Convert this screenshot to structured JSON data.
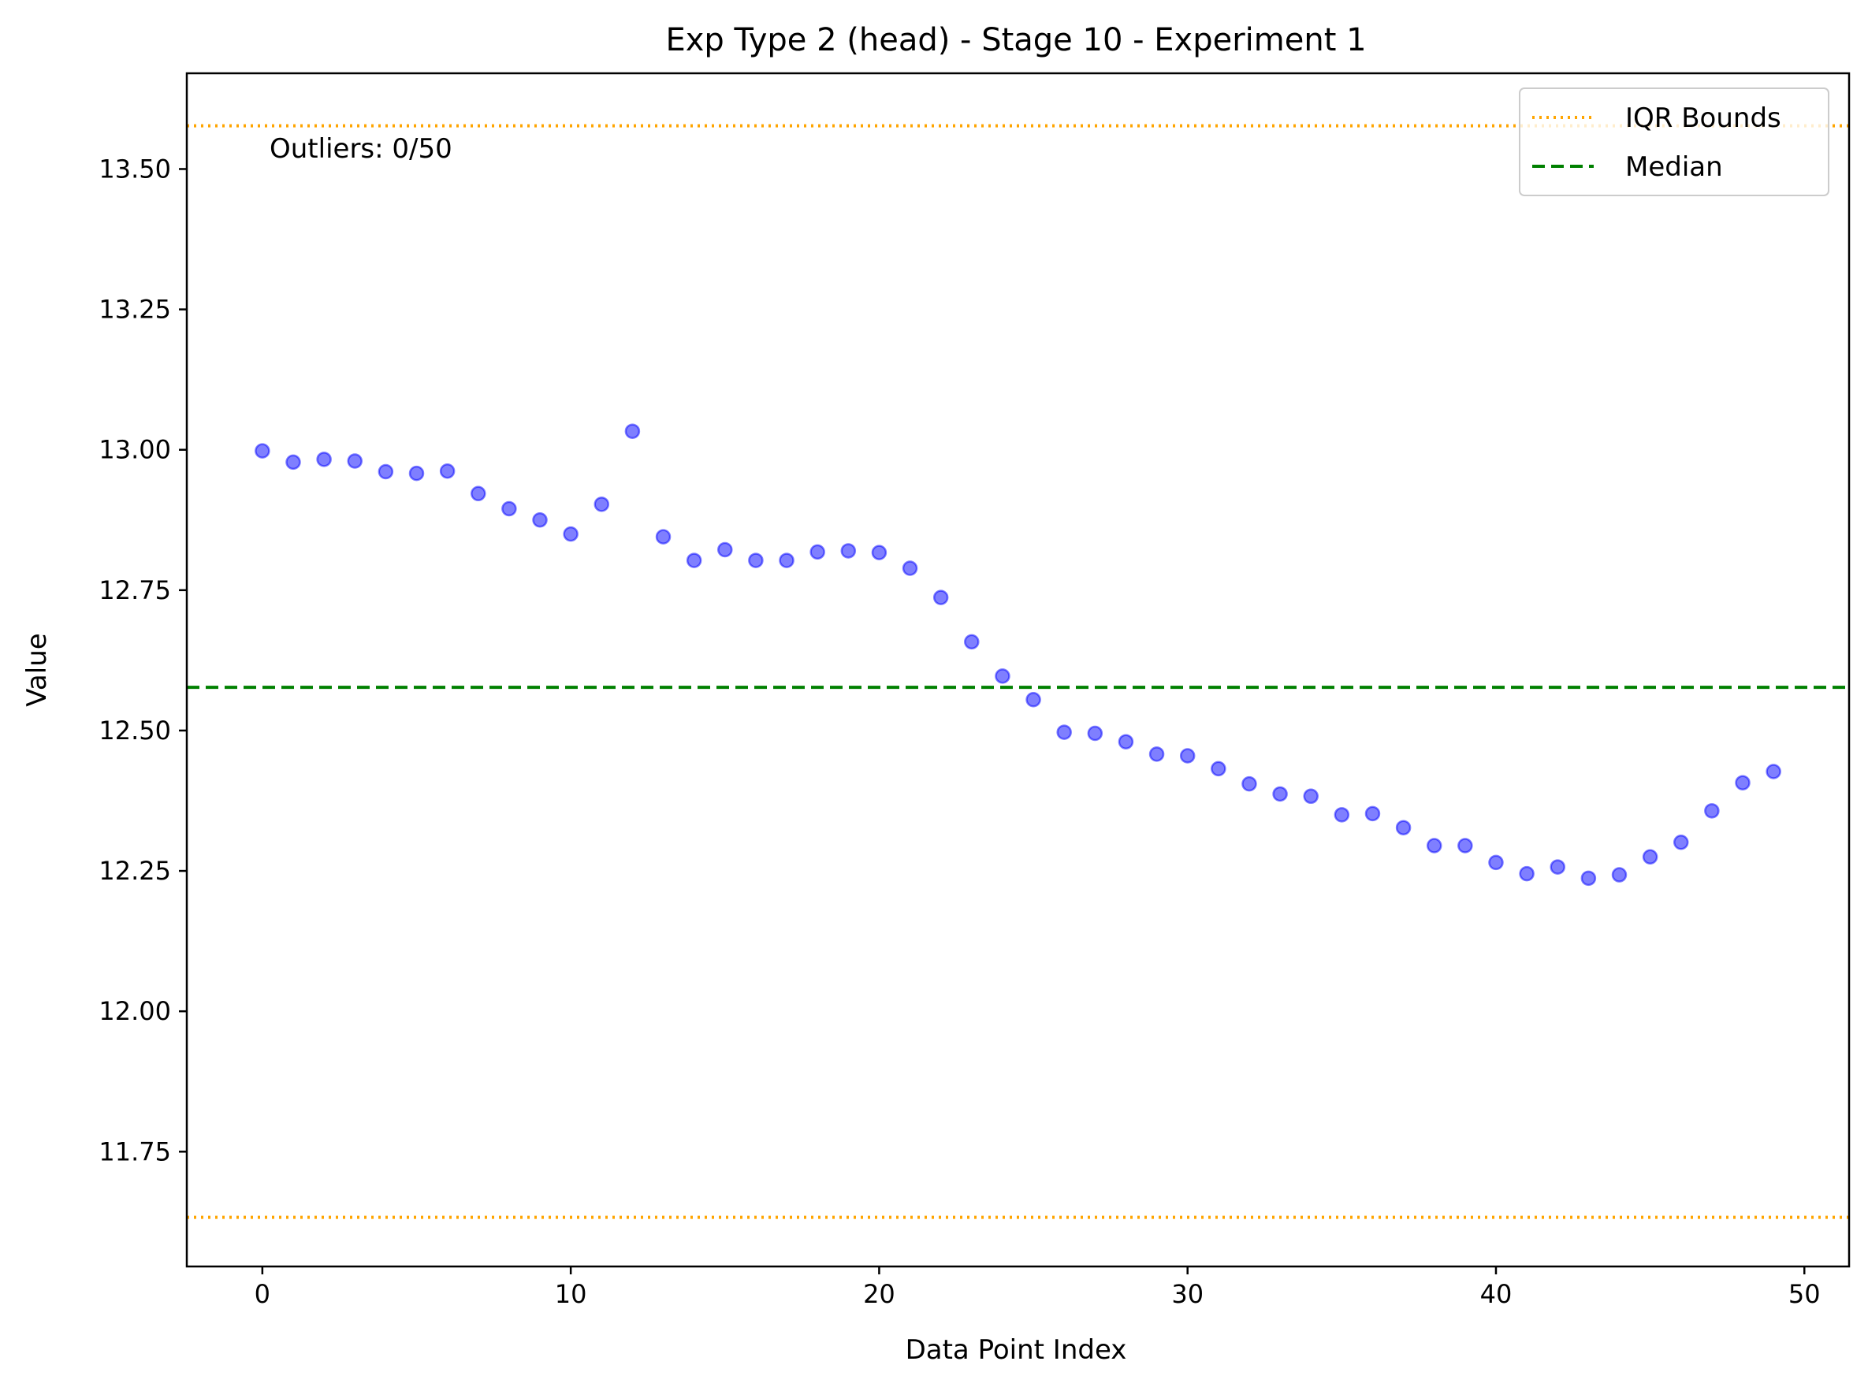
{
  "chart_data": {
    "type": "scatter",
    "title": "Exp Type 2 (head) - Stage 10 - Experiment 1",
    "xlabel": "Data Point Index",
    "ylabel": "Value",
    "xlim": [
      -2.45,
      51.45
    ],
    "ylim": [
      11.5455,
      13.6705
    ],
    "xticks": [
      0,
      10,
      20,
      30,
      40,
      50
    ],
    "xtick_labels": [
      "0",
      "10",
      "20",
      "30",
      "40",
      "50"
    ],
    "yticks": [
      11.75,
      12.0,
      12.25,
      12.5,
      12.75,
      13.0,
      13.25,
      13.5
    ],
    "ytick_labels": [
      "11.75",
      "12.00",
      "12.25",
      "12.50",
      "12.75",
      "13.00",
      "13.25",
      "13.50"
    ],
    "grid": false,
    "legend_position": "upper right",
    "annotation": "Outliers: 0/50",
    "colors": {
      "points": "#0000ff",
      "iqr": "#ffa500",
      "median": "#008000"
    },
    "series": [
      {
        "name": "",
        "x": [
          0,
          1,
          2,
          3,
          4,
          5,
          6,
          7,
          8,
          9,
          10,
          11,
          12,
          13,
          14,
          15,
          16,
          17,
          18,
          19,
          20,
          21,
          22,
          23,
          24,
          25,
          26,
          27,
          28,
          29,
          30,
          31,
          32,
          33,
          34,
          35,
          36,
          37,
          38,
          39,
          40,
          41,
          42,
          43,
          44,
          45,
          46,
          47,
          48,
          49
        ],
        "y": [
          12.998,
          12.978,
          12.983,
          12.98,
          12.961,
          12.958,
          12.962,
          12.922,
          12.895,
          12.875,
          12.85,
          12.903,
          13.033,
          12.845,
          12.803,
          12.822,
          12.803,
          12.803,
          12.818,
          12.82,
          12.817,
          12.789,
          12.737,
          12.658,
          12.597,
          12.555,
          12.497,
          12.495,
          12.48,
          12.458,
          12.455,
          12.432,
          12.405,
          12.387,
          12.383,
          12.35,
          12.352,
          12.327,
          12.295,
          12.295,
          12.265,
          12.245,
          12.257,
          12.237,
          12.243,
          12.275,
          12.301,
          12.357,
          12.407,
          12.427
        ]
      }
    ],
    "lines": [
      {
        "name": "IQR Bounds",
        "style": "dotted",
        "y": [
          13.577,
          11.633
        ]
      },
      {
        "name": "Median",
        "style": "dashed",
        "y": [
          12.577
        ]
      }
    ]
  }
}
